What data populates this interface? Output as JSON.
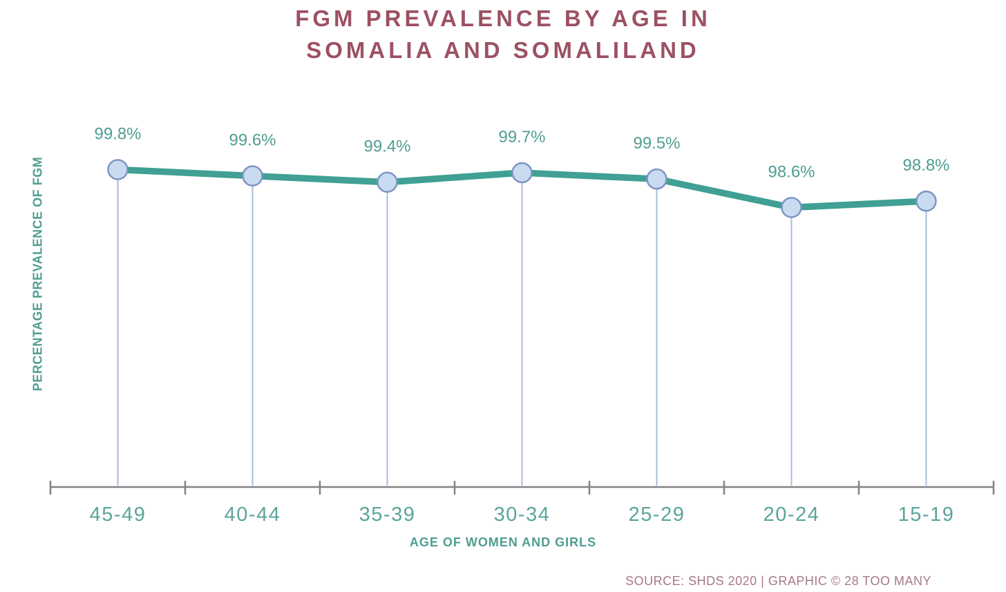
{
  "header": {
    "line1": "FGM PREVALENCE BY AGE IN",
    "line2": "SOMALIA AND SOMALILAND"
  },
  "footer": {
    "source_text": "SOURCE: SHDS 2020 | GRAPHIC © 28 TOO MANY"
  },
  "chart_data": {
    "type": "line",
    "title": "FGM PREVALENCE BY AGE IN SOMALIA AND SOMALILAND",
    "categories": [
      "45-49",
      "40-44",
      "35-39",
      "30-34",
      "25-29",
      "20-24",
      "15-19"
    ],
    "values": [
      99.8,
      99.6,
      99.4,
      99.7,
      99.5,
      98.6,
      98.8
    ],
    "value_labels": [
      "99.8%",
      "99.6%",
      "99.4%",
      "99.7%",
      "99.5%",
      "98.6%",
      "98.8%"
    ],
    "xlabel": "AGE OF WOMEN AND GIRLS",
    "ylabel": "PERCENTAGE PREVALENCE OF FGM",
    "ylim": [
      89.75,
      101.45
    ],
    "grid": false,
    "legend": "none",
    "marker_style": "circle",
    "drop_lines": true,
    "colors": {
      "line": "#3fa093",
      "marker_fill": "#c9dbf1",
      "marker_border": "#7e95c2",
      "drop_line": "#a9bcdf",
      "axis": "#828282",
      "value_label": "#4f9d92",
      "category_label": "#5ba49a",
      "axis_title": "#4f9d92",
      "title": "#9c5162",
      "source": "#a87888"
    }
  }
}
